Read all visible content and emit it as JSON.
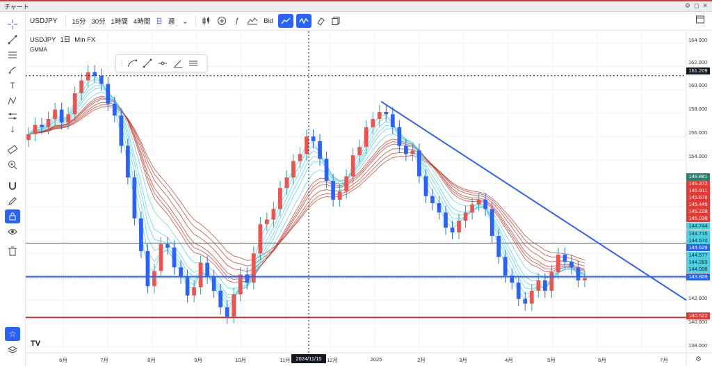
{
  "window": {
    "title": "チャート",
    "controls": [
      "⚙",
      "◻",
      "✕"
    ]
  },
  "toolbar": {
    "symbol": "USDJPY",
    "timeframes": [
      {
        "label": "15分",
        "active": false
      },
      {
        "label": "30分",
        "active": false
      },
      {
        "label": "1時間",
        "active": false
      },
      {
        "label": "4時間",
        "active": false
      },
      {
        "label": "日",
        "active": true
      },
      {
        "label": "週",
        "active": false
      }
    ],
    "bid_label": "Bid"
  },
  "legend": {
    "symbol": "USDJPY",
    "interval": "1日",
    "source": "Min FX",
    "indicator": "GMMA"
  },
  "crosshair": {
    "date_label": "2024/11/15"
  },
  "price_axis": {
    "ticks": [
      "164.000",
      "162.000",
      "160.000",
      "158.000",
      "156.000",
      "154.000",
      "142.000",
      "140.000",
      "138.000"
    ],
    "labels": [
      {
        "text": "161.209",
        "color": "#131722"
      },
      {
        "text": "146.881",
        "color": "#26806b"
      },
      {
        "text": "146.372",
        "color": "#e53935"
      },
      {
        "text": "145.911",
        "color": "#e53935"
      },
      {
        "text": "145.676",
        "color": "#e53935"
      },
      {
        "text": "145.445",
        "color": "#e53935"
      },
      {
        "text": "145.228",
        "color": "#e53935"
      },
      {
        "text": "145.038",
        "color": "#e53935"
      },
      {
        "text": "144.744",
        "color": "#4dd0e1"
      },
      {
        "text": "144.715",
        "color": "#4dd0e1"
      },
      {
        "text": "144.670",
        "color": "#4dd0e1"
      },
      {
        "text": "144.629",
        "color": "#2962ff"
      },
      {
        "text": "144.577",
        "color": "#4dd0e1"
      },
      {
        "text": "144.283",
        "color": "#4dd0e1"
      },
      {
        "text": "144.008",
        "color": "#4dd0e1"
      },
      {
        "text": "143.869",
        "color": "#2962ff"
      },
      {
        "text": "140.522",
        "color": "#e53935"
      }
    ]
  },
  "time_axis": [
    "6月",
    "7月",
    "8月",
    "9月",
    "10月",
    "11月",
    "12月",
    "2025",
    "2月",
    "3月",
    "4月",
    "5月",
    "6月",
    "7月"
  ],
  "chart_data": {
    "type": "candlestick",
    "symbol": "USDJPY",
    "interval": "1日",
    "ylim": [
      137.5,
      165
    ],
    "closes": [
      156.2,
      157.0,
      156.8,
      157.5,
      158.3,
      157.2,
      157.9,
      159.7,
      160.8,
      161.5,
      161.2,
      160.5,
      158.8,
      157.8,
      155.2,
      152.5,
      149.0,
      146.2,
      143.2,
      144.5,
      146.8,
      146.5,
      144.8,
      144.0,
      142.4,
      143.1,
      145.2,
      144.0,
      142.8,
      141.4,
      140.6,
      142.5,
      144.2,
      143.5,
      146.0,
      148.5,
      148.9,
      149.8,
      151.6,
      152.5,
      153.9,
      154.5,
      156.0,
      155.6,
      154.1,
      152.2,
      150.6,
      151.3,
      152.6,
      154.4,
      155.1,
      156.8,
      157.5,
      158.1,
      157.9,
      156.8,
      155.2,
      154.5,
      154.8,
      152.6,
      150.9,
      150.3,
      149.5,
      148.2,
      147.8,
      148.8,
      149.5,
      150.2,
      150.6,
      149.8,
      147.5,
      145.7,
      144.1,
      143.5,
      142.1,
      141.7,
      142.8,
      143.7,
      142.8,
      144.4,
      145.9,
      145.3,
      144.8,
      143.7,
      143.9
    ]
  }
}
